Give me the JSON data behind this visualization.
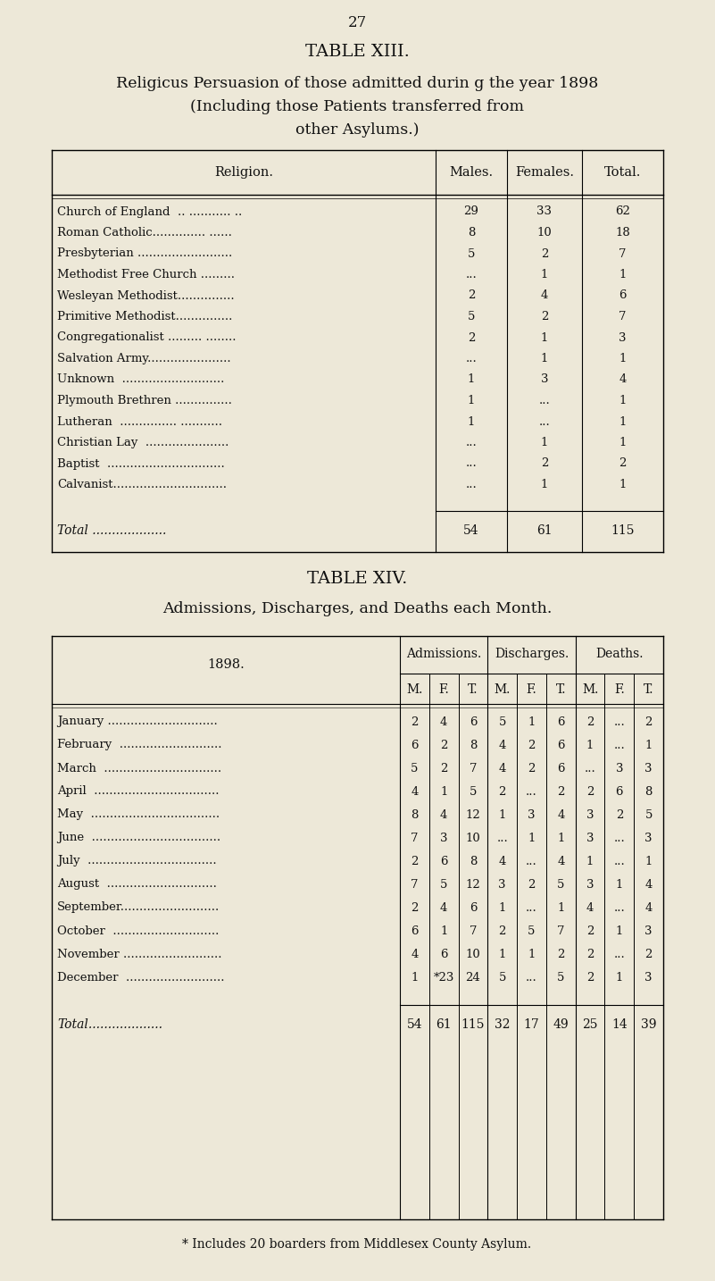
{
  "bg_color": "#ede8d8",
  "page_number": "27",
  "table13_title": "TABLE XIII.",
  "table13_subtitle1": "Religicus Persuasion of those admitted durin g the year 1898",
  "table13_subtitle2": "(Including those Patients transferred from",
  "table13_subtitle3": "other Asylums.)",
  "table13_headers": [
    "Religion.",
    "Males.",
    "Females.",
    "Total."
  ],
  "table13_rows": [
    [
      "Church of England  .. ........... ..",
      "29",
      "33",
      "62"
    ],
    [
      "Roman Catholic.............. ......",
      "8",
      "10",
      "18"
    ],
    [
      "Presbyterian .........................",
      "5",
      "2",
      "7"
    ],
    [
      "Methodist Free Church .........",
      "...",
      "1",
      "1"
    ],
    [
      "Wesleyan Methodist...............",
      "2",
      "4",
      "6"
    ],
    [
      "Primitive Methodist...............",
      "5",
      "2",
      "7"
    ],
    [
      "Congregationalist ......... ........",
      "2",
      "1",
      "3"
    ],
    [
      "Salvation Army......................",
      "...",
      "1",
      "1"
    ],
    [
      "Unknown  ...........................",
      "1",
      "3",
      "4"
    ],
    [
      "Plymouth Brethren ...............",
      "1",
      "...",
      "1"
    ],
    [
      "Lutheran  ............... ...........",
      "1",
      "...",
      "1"
    ],
    [
      "Christian Lay  ......................",
      "...",
      "1",
      "1"
    ],
    [
      "Baptist  ...............................",
      "...",
      "2",
      "2"
    ],
    [
      "Calvanist..............................",
      "...",
      "1",
      "1"
    ]
  ],
  "table13_total_row": [
    "Total ...................",
    "54",
    "61",
    "115"
  ],
  "table14_title": "TABLE XIV.",
  "table14_subtitle": "Admissions, Discharges, and Deaths each Month.",
  "table14_group_headers": [
    "Admissions.",
    "Discharges.",
    "Deaths."
  ],
  "table14_year": "1898.",
  "table14_col_headers": [
    "M.",
    "F.",
    "T.",
    "M.",
    "F.",
    "T.",
    "M.",
    "F.",
    "T."
  ],
  "table14_rows": [
    [
      "January .............................",
      "2",
      "4",
      "6",
      "5",
      "1",
      "6",
      "2",
      "...",
      "2"
    ],
    [
      "February  ...........................",
      "6",
      "2",
      "8",
      "4",
      "2",
      "6",
      "1",
      "...",
      "1"
    ],
    [
      "March  ...............................",
      "5",
      "2",
      "7",
      "4",
      "2",
      "6",
      "...",
      "3",
      "3"
    ],
    [
      "April  .................................",
      "4",
      "1",
      "5",
      "2",
      "...",
      "2",
      "2",
      "6",
      "8"
    ],
    [
      "May  ..................................",
      "8",
      "4",
      "12",
      "1",
      "3",
      "4",
      "3",
      "2",
      "5"
    ],
    [
      "June  ..................................",
      "7",
      "3",
      "10",
      "...",
      "1",
      "1",
      "3",
      "...",
      "3"
    ],
    [
      "July  ..................................",
      "2",
      "6",
      "8",
      "4",
      "...",
      "4",
      "1",
      "...",
      "1"
    ],
    [
      "August  .............................",
      "7",
      "5",
      "12",
      "3",
      "2",
      "5",
      "3",
      "1",
      "4"
    ],
    [
      "September..........................",
      "2",
      "4",
      "6",
      "1",
      "...",
      "1",
      "4",
      "...",
      "4"
    ],
    [
      "October  ............................",
      "6",
      "1",
      "7",
      "2",
      "5",
      "7",
      "2",
      "1",
      "3"
    ],
    [
      "November ..........................",
      "4",
      "6",
      "10",
      "1",
      "1",
      "2",
      "2",
      "...",
      "2"
    ],
    [
      "December  ..........................",
      "1",
      "*23",
      "24",
      "5",
      "...",
      "5",
      "2",
      "1",
      "3"
    ]
  ],
  "table14_total_row": [
    "Total...................",
    "54",
    "61",
    "115",
    "32",
    "17",
    "49",
    "25",
    "14",
    "39"
  ],
  "footnote": "* Includes 20 boarders from Middlesex County Asylum."
}
